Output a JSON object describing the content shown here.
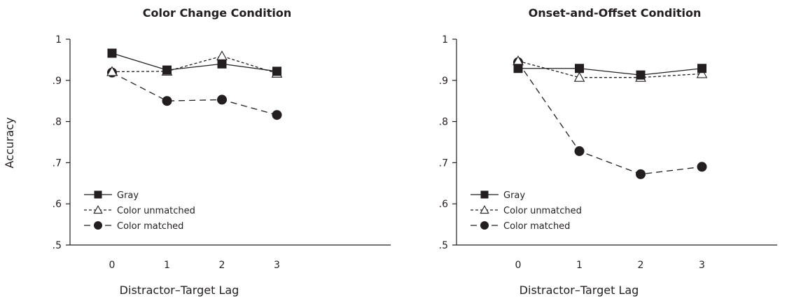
{
  "chart_data": [
    {
      "type": "line",
      "title": "Color Change Condition",
      "xlabel": "Distractor–Target Lag",
      "ylabel": "Accuracy",
      "categories": [
        "0",
        "1",
        "2",
        "3"
      ],
      "x": [
        0,
        1,
        2,
        3
      ],
      "ylim": [
        0.5,
        1.0
      ],
      "yticks": [
        0.5,
        0.6,
        0.7,
        0.8,
        0.9,
        1.0
      ],
      "ytick_labels": [
        ".5",
        ".6",
        ".7",
        ".8",
        ".9",
        "1"
      ],
      "grid": false,
      "legend_position": "bottom-left",
      "series": [
        {
          "name": "Gray",
          "values": [
            0.966,
            0.925,
            0.94,
            0.922
          ],
          "marker": "square",
          "dash": "solid",
          "fill": "black"
        },
        {
          "name": "Color unmatched",
          "values": [
            0.921,
            0.922,
            0.959,
            0.917
          ],
          "marker": "triangle",
          "dash": "dotted",
          "fill": "white"
        },
        {
          "name": "Color matched",
          "values": [
            0.919,
            0.85,
            0.853,
            0.816
          ],
          "marker": "circle",
          "dash": "dashed",
          "fill": "black"
        }
      ]
    },
    {
      "type": "line",
      "title": "Onset-and-Offset Condition",
      "xlabel": "Distractor–Target Lag",
      "ylabel": "",
      "categories": [
        "0",
        "1",
        "2",
        "3"
      ],
      "x": [
        0,
        1,
        2,
        3
      ],
      "ylim": [
        0.5,
        1.0
      ],
      "yticks": [
        0.5,
        0.6,
        0.7,
        0.8,
        0.9,
        1.0
      ],
      "ytick_labels": [
        ".5",
        ".6",
        ".7",
        ".8",
        ".9",
        "1"
      ],
      "grid": false,
      "legend_position": "bottom-left",
      "series": [
        {
          "name": "Gray",
          "values": [
            0.929,
            0.929,
            0.913,
            0.929
          ],
          "marker": "square",
          "dash": "solid",
          "fill": "black"
        },
        {
          "name": "Color unmatched",
          "values": [
            0.947,
            0.907,
            0.907,
            0.916
          ],
          "marker": "triangle",
          "dash": "dotted",
          "fill": "white"
        },
        {
          "name": "Color matched",
          "values": [
            0.944,
            0.728,
            0.672,
            0.69
          ],
          "marker": "circle",
          "dash": "dashed",
          "fill": "black"
        }
      ]
    }
  ]
}
